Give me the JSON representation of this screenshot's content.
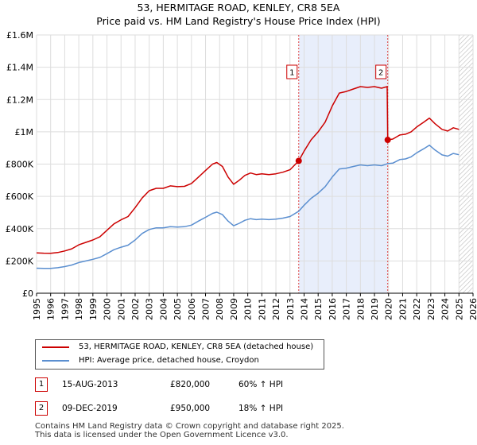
{
  "chart_data": {
    "type": "line",
    "title": "53, HERMITAGE ROAD, KENLEY, CR8 5EA",
    "subtitle": "Price paid vs. HM Land Registry's House Price Index (HPI)",
    "xlim": [
      1995,
      2026
    ],
    "ylim": [
      0,
      1600000
    ],
    "x_ticks": [
      "1995",
      "1996",
      "1997",
      "1998",
      "1999",
      "2000",
      "2001",
      "2002",
      "2003",
      "2004",
      "2005",
      "2006",
      "2007",
      "2008",
      "2009",
      "2010",
      "2011",
      "2012",
      "2013",
      "2014",
      "2015",
      "2016",
      "2017",
      "2018",
      "2019",
      "2020",
      "2021",
      "2022",
      "2023",
      "2024",
      "2025",
      "2026"
    ],
    "y_ticks": [
      {
        "value": 0,
        "label": "£0"
      },
      {
        "value": 200000,
        "label": "£200K"
      },
      {
        "value": 400000,
        "label": "£400K"
      },
      {
        "value": 600000,
        "label": "£600K"
      },
      {
        "value": 800000,
        "label": "£800K"
      },
      {
        "value": 1000000,
        "label": "£1M"
      },
      {
        "value": 1200000,
        "label": "£1.2M"
      },
      {
        "value": 1400000,
        "label": "£1.4M"
      },
      {
        "value": 1600000,
        "label": "£1.6M"
      }
    ],
    "grid": true,
    "shaded_span": [
      2013.62,
      2019.94
    ],
    "future_hatch_from": 2025.0,
    "series": [
      {
        "name": "53, HERMITAGE ROAD, KENLEY, CR8 5EA (detached house)",
        "color": "#cc0000",
        "points": [
          [
            1995.0,
            250000
          ],
          [
            1995.5,
            248000
          ],
          [
            1996.0,
            247000
          ],
          [
            1996.5,
            252000
          ],
          [
            1997.0,
            262000
          ],
          [
            1997.5,
            275000
          ],
          [
            1998.0,
            300000
          ],
          [
            1998.5,
            315000
          ],
          [
            1999.0,
            330000
          ],
          [
            1999.5,
            350000
          ],
          [
            2000.0,
            390000
          ],
          [
            2000.5,
            430000
          ],
          [
            2001.0,
            455000
          ],
          [
            2001.5,
            475000
          ],
          [
            2002.0,
            530000
          ],
          [
            2002.5,
            590000
          ],
          [
            2003.0,
            635000
          ],
          [
            2003.5,
            650000
          ],
          [
            2004.0,
            650000
          ],
          [
            2004.5,
            665000
          ],
          [
            2005.0,
            660000
          ],
          [
            2005.5,
            662000
          ],
          [
            2006.0,
            680000
          ],
          [
            2006.5,
            720000
          ],
          [
            2007.0,
            760000
          ],
          [
            2007.5,
            800000
          ],
          [
            2007.8,
            810000
          ],
          [
            2008.2,
            785000
          ],
          [
            2008.6,
            720000
          ],
          [
            2009.0,
            675000
          ],
          [
            2009.4,
            700000
          ],
          [
            2009.8,
            730000
          ],
          [
            2010.2,
            745000
          ],
          [
            2010.6,
            735000
          ],
          [
            2011.0,
            740000
          ],
          [
            2011.5,
            735000
          ],
          [
            2012.0,
            740000
          ],
          [
            2012.5,
            750000
          ],
          [
            2013.0,
            765000
          ],
          [
            2013.62,
            820000
          ],
          [
            2014.0,
            880000
          ],
          [
            2014.5,
            950000
          ],
          [
            2015.0,
            1000000
          ],
          [
            2015.5,
            1060000
          ],
          [
            2016.0,
            1160000
          ],
          [
            2016.5,
            1240000
          ],
          [
            2017.0,
            1250000
          ],
          [
            2017.5,
            1265000
          ],
          [
            2018.0,
            1280000
          ],
          [
            2018.5,
            1275000
          ],
          [
            2019.0,
            1280000
          ],
          [
            2019.5,
            1270000
          ],
          [
            2019.9,
            1280000
          ],
          [
            2019.94,
            950000
          ],
          [
            2020.3,
            955000
          ],
          [
            2020.8,
            980000
          ],
          [
            2021.2,
            985000
          ],
          [
            2021.6,
            1000000
          ],
          [
            2022.0,
            1030000
          ],
          [
            2022.5,
            1060000
          ],
          [
            2022.9,
            1085000
          ],
          [
            2023.3,
            1050000
          ],
          [
            2023.8,
            1015000
          ],
          [
            2024.2,
            1005000
          ],
          [
            2024.6,
            1025000
          ],
          [
            2025.0,
            1015000
          ]
        ]
      },
      {
        "name": "HPI: Average price, detached house, Croydon",
        "color": "#5b8fd0",
        "points": [
          [
            1995.0,
            155000
          ],
          [
            1995.5,
            154000
          ],
          [
            1996.0,
            154000
          ],
          [
            1996.5,
            158000
          ],
          [
            1997.0,
            165000
          ],
          [
            1997.5,
            175000
          ],
          [
            1998.0,
            190000
          ],
          [
            1998.5,
            200000
          ],
          [
            1999.0,
            210000
          ],
          [
            1999.5,
            222000
          ],
          [
            2000.0,
            245000
          ],
          [
            2000.5,
            270000
          ],
          [
            2001.0,
            285000
          ],
          [
            2001.5,
            298000
          ],
          [
            2002.0,
            330000
          ],
          [
            2002.5,
            370000
          ],
          [
            2003.0,
            395000
          ],
          [
            2003.5,
            405000
          ],
          [
            2004.0,
            405000
          ],
          [
            2004.5,
            412000
          ],
          [
            2005.0,
            410000
          ],
          [
            2005.5,
            412000
          ],
          [
            2006.0,
            422000
          ],
          [
            2006.5,
            447000
          ],
          [
            2007.0,
            470000
          ],
          [
            2007.5,
            495000
          ],
          [
            2007.8,
            502000
          ],
          [
            2008.2,
            487000
          ],
          [
            2008.6,
            447000
          ],
          [
            2009.0,
            418000
          ],
          [
            2009.4,
            433000
          ],
          [
            2009.8,
            452000
          ],
          [
            2010.2,
            462000
          ],
          [
            2010.6,
            456000
          ],
          [
            2011.0,
            459000
          ],
          [
            2011.5,
            456000
          ],
          [
            2012.0,
            459000
          ],
          [
            2012.5,
            465000
          ],
          [
            2013.0,
            475000
          ],
          [
            2013.62,
            508000
          ],
          [
            2014.0,
            545000
          ],
          [
            2014.5,
            588000
          ],
          [
            2015.0,
            620000
          ],
          [
            2015.5,
            660000
          ],
          [
            2016.0,
            720000
          ],
          [
            2016.5,
            770000
          ],
          [
            2017.0,
            775000
          ],
          [
            2017.5,
            785000
          ],
          [
            2018.0,
            795000
          ],
          [
            2018.5,
            790000
          ],
          [
            2019.0,
            795000
          ],
          [
            2019.5,
            790000
          ],
          [
            2019.94,
            803000
          ],
          [
            2020.3,
            806000
          ],
          [
            2020.8,
            828000
          ],
          [
            2021.2,
            832000
          ],
          [
            2021.6,
            845000
          ],
          [
            2022.0,
            870000
          ],
          [
            2022.5,
            895000
          ],
          [
            2022.9,
            917000
          ],
          [
            2023.3,
            887000
          ],
          [
            2023.8,
            857000
          ],
          [
            2024.2,
            849000
          ],
          [
            2024.6,
            866000
          ],
          [
            2025.0,
            858000
          ]
        ]
      }
    ],
    "annotations": [
      {
        "label": "1",
        "x": 2013.62,
        "y": 820000
      },
      {
        "label": "2",
        "x": 2019.94,
        "y": 950000
      }
    ]
  },
  "legend": {
    "items": [
      {
        "label": "53, HERMITAGE ROAD, KENLEY, CR8 5EA (detached house)",
        "color": "#cc0000"
      },
      {
        "label": "HPI: Average price, detached house, Croydon",
        "color": "#5b8fd0"
      }
    ]
  },
  "transactions": [
    {
      "num": "1",
      "date": "15-AUG-2013",
      "price": "£820,000",
      "hpi": "60% ↑ HPI"
    },
    {
      "num": "2",
      "date": "09-DEC-2019",
      "price": "£950,000",
      "hpi": "18% ↑ HPI"
    }
  ],
  "footer": {
    "line1": "Contains HM Land Registry data © Crown copyright and database right 2025.",
    "line2": "This data is licensed under the Open Government Licence v3.0."
  }
}
